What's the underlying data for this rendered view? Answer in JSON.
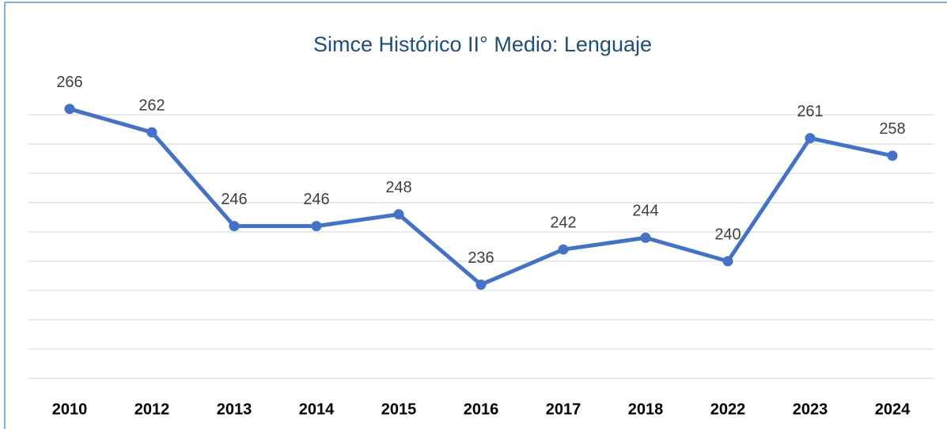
{
  "chart_data": {
    "type": "line",
    "title": "Simce Histórico II° Medio: Lenguaje",
    "categories": [
      "2010",
      "2012",
      "2013",
      "2014",
      "2015",
      "2016",
      "2017",
      "2018",
      "2022",
      "2023",
      "2024"
    ],
    "values": [
      266,
      262,
      246,
      246,
      248,
      236,
      242,
      244,
      240,
      261,
      258
    ],
    "color": "#4472c4",
    "ylim": [
      220,
      270
    ],
    "yticks": [
      220,
      225,
      230,
      235,
      240,
      245,
      250,
      255,
      260,
      265
    ],
    "grid": true
  }
}
